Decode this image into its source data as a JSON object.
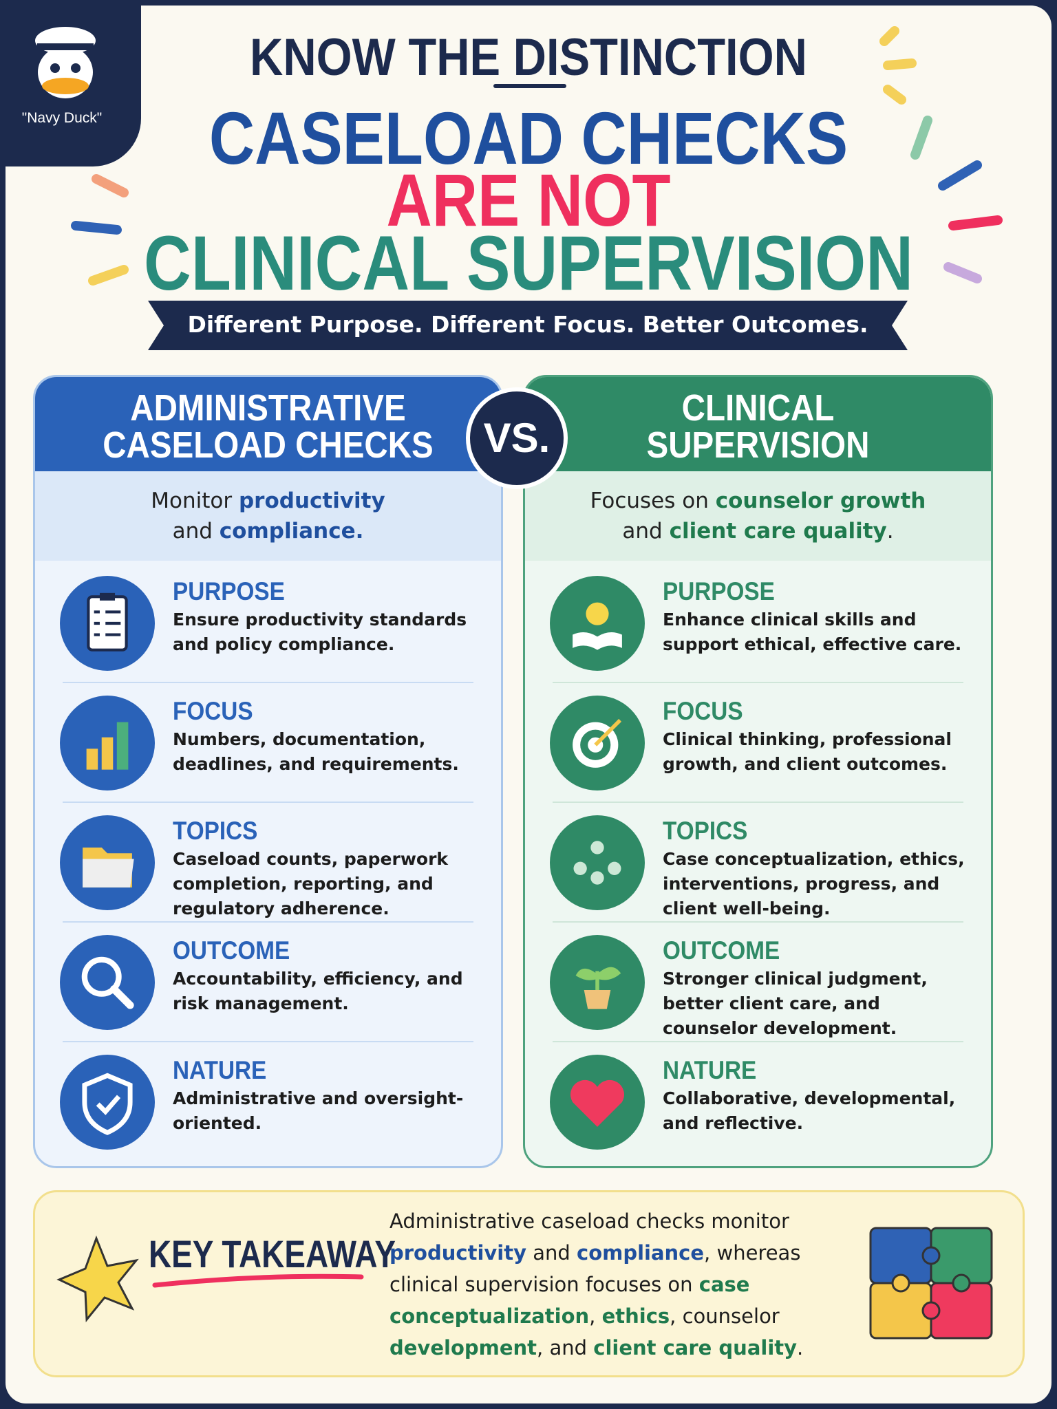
{
  "badge": {
    "label": "\"Navy Duck\""
  },
  "header": {
    "kicker": "KNOW THE DISTINCTION",
    "title_lines": [
      {
        "text": "CASELOAD CHECKS",
        "color": "#1f4f9e"
      },
      {
        "text": "ARE NOT",
        "color": "#ef2f5e"
      },
      {
        "text": "CLINICAL SUPERVISION",
        "color": "#2a8c7c"
      }
    ],
    "tagline": "Different Purpose. Different Focus. Better Outcomes."
  },
  "vs": "VS.",
  "columns": [
    {
      "title_lines": [
        "ADMINISTRATIVE",
        "CASELOAD CHECKS"
      ],
      "color": "#2a62b8",
      "summary": [
        {
          "text": "Monitor "
        },
        {
          "text": "productivity",
          "color": "#1f4f9e"
        },
        {
          "text": " and "
        },
        {
          "text": "compliance.",
          "color": "#1f4f9e"
        }
      ],
      "rows": [
        {
          "heading": "PURPOSE",
          "text": "Ensure productivity standards and policy compliance."
        },
        {
          "heading": "FOCUS",
          "text": "Numbers, documentation, deadlines, and requirements."
        },
        {
          "heading": "TOPICS",
          "text": "Caseload counts, paperwork completion, reporting, and regulatory adherence."
        },
        {
          "heading": "OUTCOME",
          "text": "Accountability, efficiency, and risk management."
        },
        {
          "heading": "NATURE",
          "text": "Administrative and oversight-oriented."
        }
      ]
    },
    {
      "title_lines": [
        "CLINICAL",
        "SUPERVISION"
      ],
      "color": "#2f8a66",
      "summary": [
        {
          "text": "Focuses on "
        },
        {
          "text": "counselor growth",
          "color": "#1f7a4d"
        },
        {
          "text": " and "
        },
        {
          "text": "client care quality",
          "color": "#1f7a4d"
        },
        {
          "text": "."
        }
      ],
      "rows": [
        {
          "heading": "PURPOSE",
          "text": "Enhance clinical skills and support ethical, effective care."
        },
        {
          "heading": "FOCUS",
          "text": "Clinical thinking, professional growth, and client outcomes."
        },
        {
          "heading": "TOPICS",
          "text": "Case conceptualization, ethics, interventions, progress, and client well-being."
        },
        {
          "heading": "OUTCOME",
          "text": "Stronger clinical judgment, better client care, and counselor development."
        },
        {
          "heading": "NATURE",
          "text": "Collaborative, developmental, and reflective."
        }
      ]
    }
  ],
  "takeaway": {
    "label": "KEY TAKEAWAY",
    "text": [
      {
        "text": "Administrative caseload checks monitor "
      },
      {
        "text": "productivity",
        "color": "#1f4f9e"
      },
      {
        "text": " and "
      },
      {
        "text": "compliance",
        "color": "#1f4f9e"
      },
      {
        "text": ", whereas clinical supervision focuses on "
      },
      {
        "text": "case conceptualization",
        "color": "#1f7a4d"
      },
      {
        "text": ", "
      },
      {
        "text": "ethics",
        "color": "#1f7a4d"
      },
      {
        "text": ", counselor "
      },
      {
        "text": "development",
        "color": "#1f7a4d"
      },
      {
        "text": ", and "
      },
      {
        "text": "client care quality",
        "color": "#1f7a4d"
      },
      {
        "text": "."
      }
    ]
  }
}
